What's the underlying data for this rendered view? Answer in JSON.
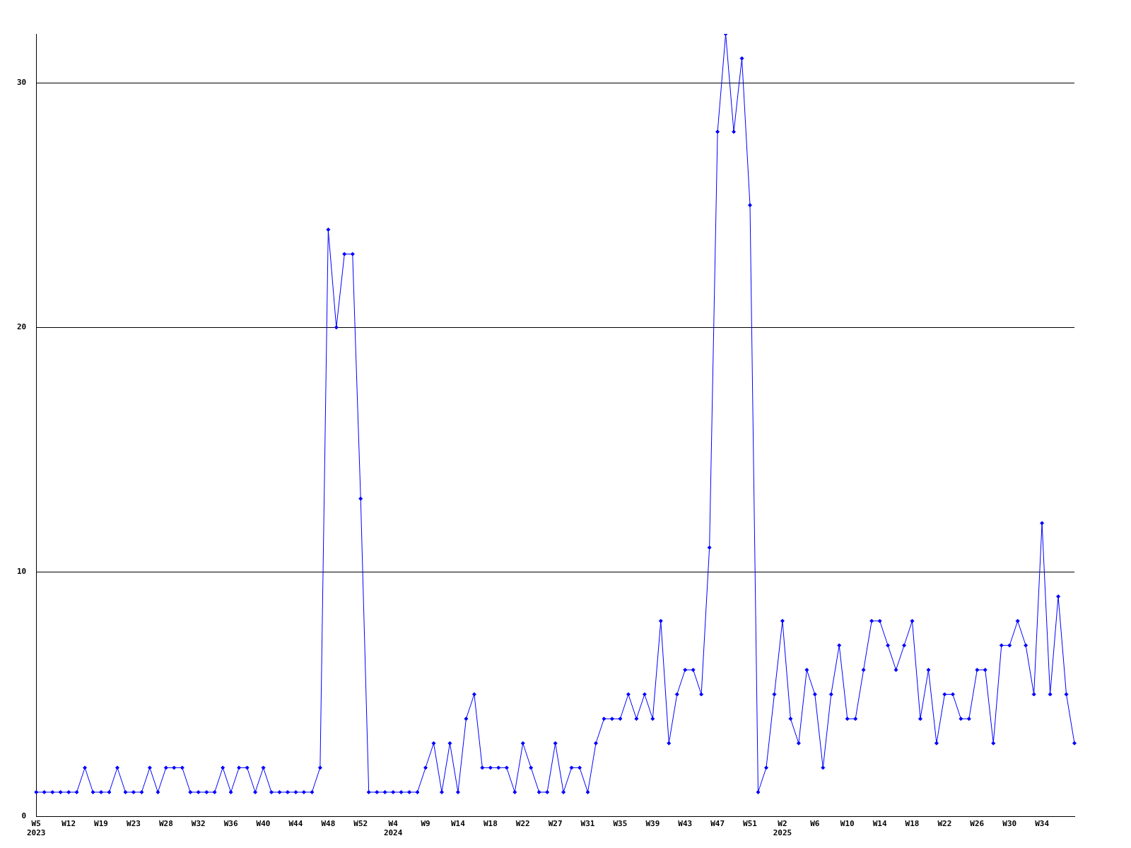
{
  "chart_data": {
    "type": "line",
    "categories": [
      "W5\n2023",
      null,
      null,
      null,
      "W12",
      null,
      null,
      null,
      "W19",
      null,
      null,
      null,
      "W23",
      null,
      null,
      null,
      "W28",
      null,
      null,
      null,
      "W32",
      null,
      null,
      null,
      "W36",
      null,
      null,
      null,
      "W40",
      null,
      null,
      null,
      "W44",
      null,
      null,
      null,
      "W48",
      null,
      null,
      null,
      "W52",
      null,
      null,
      null,
      "W4\n2024",
      null,
      null,
      null,
      "W9",
      null,
      null,
      null,
      "W14",
      null,
      null,
      null,
      "W18",
      null,
      null,
      null,
      "W22",
      null,
      null,
      null,
      "W27",
      null,
      null,
      null,
      "W31",
      null,
      null,
      null,
      "W35",
      null,
      null,
      null,
      "W39",
      null,
      null,
      null,
      "W43",
      null,
      null,
      null,
      "W47",
      null,
      null,
      null,
      "W51",
      null,
      null,
      null,
      "W2\n2025",
      null,
      null,
      null,
      "W6",
      null,
      null,
      null,
      "W10",
      null,
      null,
      null,
      "W14",
      null,
      null,
      null,
      "W18",
      null,
      null,
      null,
      "W22",
      null,
      null,
      null,
      "W26",
      null,
      null,
      null,
      "W30",
      null,
      null,
      null,
      "W34",
      null,
      null,
      null,
      null
    ],
    "series": [
      {
        "color": "#0000ff",
        "values": [
          1,
          1,
          1,
          1,
          1,
          1,
          2,
          1,
          1,
          1,
          2,
          1,
          1,
          1,
          2,
          1,
          2,
          2,
          2,
          1,
          1,
          1,
          1,
          2,
          1,
          2,
          2,
          1,
          2,
          1,
          1,
          1,
          1,
          1,
          1,
          2,
          24,
          20,
          23,
          23,
          13,
          1,
          1,
          1,
          1,
          1,
          1,
          1,
          2,
          3,
          1,
          3,
          1,
          4,
          5,
          2,
          2,
          2,
          2,
          1,
          3,
          2,
          1,
          1,
          3,
          1,
          2,
          2,
          1,
          3,
          4,
          4,
          4,
          5,
          4,
          5,
          4,
          8,
          3,
          5,
          6,
          6,
          5,
          11,
          28,
          32,
          28,
          31,
          25,
          1,
          2,
          5,
          8,
          4,
          3,
          6,
          5,
          2,
          5,
          7,
          4,
          4,
          6,
          8,
          8,
          7,
          6,
          7,
          8,
          4,
          6,
          3,
          5,
          5,
          4,
          4,
          6,
          6,
          3,
          7,
          7,
          8,
          7,
          5,
          12,
          5,
          9,
          5,
          3
        ]
      }
    ],
    "ylim": [
      0,
      32
    ],
    "yticks": [
      0,
      10,
      20,
      30
    ],
    "grid": "y",
    "legend": false,
    "marker": "diamond",
    "line_style": "solid"
  }
}
